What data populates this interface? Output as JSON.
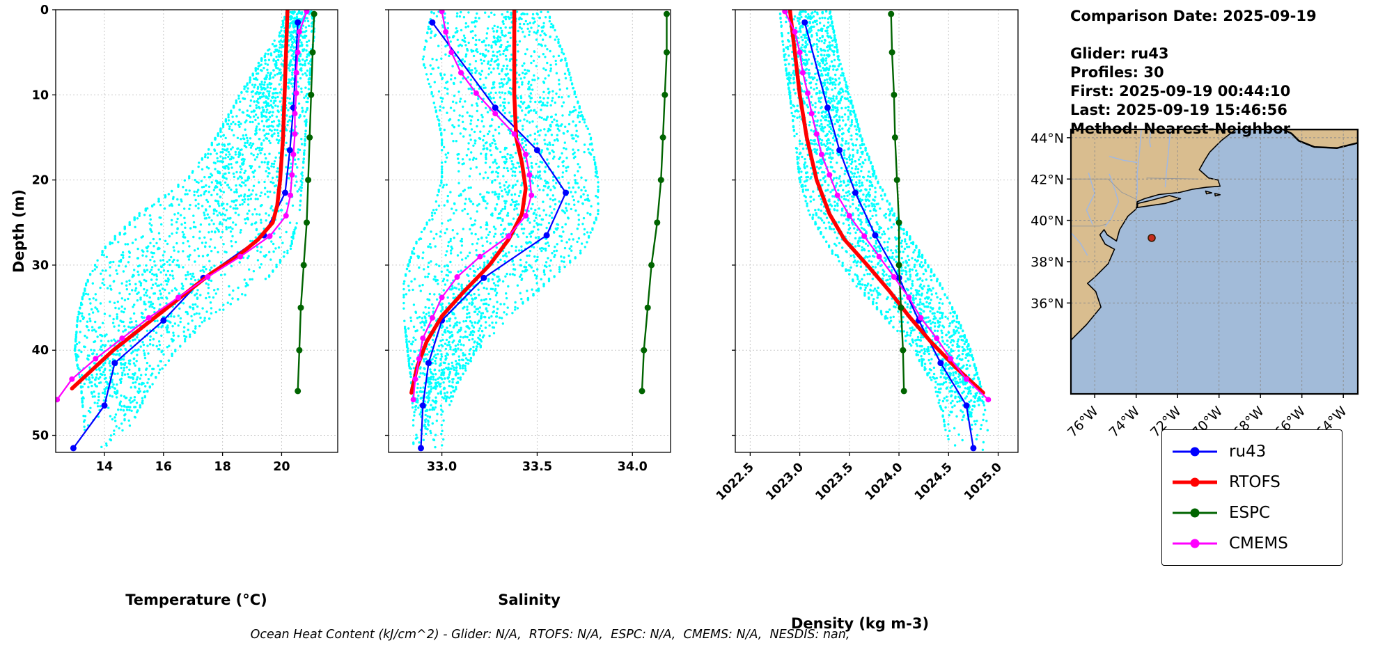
{
  "info": {
    "comparison_date": "Comparison Date: 2025-09-19",
    "glider": "Glider: ru43",
    "profiles": "Profiles: 30",
    "first": "First: 2025-09-19 00:44:10",
    "last": "Last: 2025-09-19 15:46:56",
    "method": "Method: Nearest-Neighbor"
  },
  "caption": "Ocean Heat Content (kJ/cm^2) - Glider: N/A,  RTOFS: N/A,  ESPC: N/A,  CMEMS: N/A,  NESDIS: nan,",
  "scatter_seed": 7,
  "colors": {
    "scatter": "#00FFFF",
    "ru43": "#0000FF",
    "RTOFS": "#FF0000",
    "ESPC": "#006400",
    "CMEMS": "#FF00FF",
    "land": "#D9BD8F",
    "ocean": "#A2BBD9",
    "rivers": "#9DB8E8",
    "grid": "#C9C9C9",
    "marker_fill": "#C62B1C",
    "marker_edge": "#3A1D06"
  },
  "legend": [
    {
      "label": "ru43",
      "color": "#0000FF",
      "lw": 3
    },
    {
      "label": "RTOFS",
      "color": "#FF0000",
      "lw": 5
    },
    {
      "label": "ESPC",
      "color": "#006400",
      "lw": 3
    },
    {
      "label": "CMEMS",
      "color": "#FF00FF",
      "lw": 3
    }
  ],
  "chart_data": [
    {
      "type": "scatter",
      "panel": "temperature",
      "xlabel": "Temperature (°C)",
      "ylabel": "Depth (m)",
      "xlim": [
        12.35,
        21.9
      ],
      "depth_lim": [
        0,
        52
      ],
      "xticks": [
        14,
        16,
        18,
        20
      ],
      "xtick_labels": [
        "14",
        "16",
        "18",
        "20"
      ],
      "yticks": [
        0,
        10,
        20,
        30,
        40,
        50
      ],
      "ytick_labels": [
        "0",
        "10",
        "20",
        "30",
        "40",
        "50"
      ],
      "rotate_xtick_labels": false,
      "show_ytick_labels": true,
      "scatter_envelope": {
        "depths": [
          0,
          3,
          6,
          10,
          15,
          20,
          24,
          28,
          32,
          36,
          40,
          44,
          48,
          52
        ],
        "min": [
          20.2,
          19.9,
          19.3,
          18.6,
          17.8,
          16.8,
          15.2,
          14.0,
          13.4,
          13.1,
          13.0,
          13.2,
          13.3,
          13.4
        ],
        "max": [
          21.1,
          21.1,
          21.0,
          20.9,
          20.8,
          20.7,
          20.6,
          20.3,
          19.4,
          17.6,
          16.4,
          15.6,
          15.0,
          14.4
        ]
      },
      "series": [
        {
          "name": "ru43",
          "lw": 2.2,
          "ms": 4.5,
          "marker": true,
          "depths": [
            1.5,
            11.5,
            16.5,
            21.5,
            26.5,
            31.5,
            36.5,
            41.5,
            46.5,
            51.5
          ],
          "values": [
            20.55,
            20.4,
            20.28,
            20.12,
            19.4,
            17.35,
            16.0,
            14.35,
            14.0,
            12.95
          ]
        },
        {
          "name": "RTOFS",
          "lw": 5.5,
          "ms": 0,
          "marker": false,
          "depths": [
            0,
            5,
            10,
            15,
            20,
            23,
            25,
            27,
            29,
            31,
            34,
            37,
            40,
            44.5
          ],
          "values": [
            20.2,
            20.15,
            20.1,
            20.05,
            19.95,
            19.85,
            19.7,
            19.2,
            18.5,
            17.6,
            16.5,
            15.4,
            14.3,
            12.9
          ]
        },
        {
          "name": "ESPC",
          "lw": 2.4,
          "ms": 4.5,
          "marker": true,
          "depths": [
            0.5,
            5,
            10,
            15,
            20,
            25,
            30,
            35,
            40,
            44.8
          ],
          "values": [
            21.1,
            21.05,
            21.0,
            20.95,
            20.9,
            20.85,
            20.75,
            20.65,
            20.6,
            20.55
          ]
        },
        {
          "name": "CMEMS",
          "lw": 2.2,
          "ms": 4,
          "marker": true,
          "depths": [
            0.2,
            2.6,
            5,
            7.4,
            9.8,
            12.2,
            14.6,
            17,
            19.4,
            21.8,
            24.2,
            26.6,
            29,
            31.4,
            33.8,
            36.2,
            38.6,
            41,
            43.4,
            45.8
          ],
          "values": [
            20.85,
            20.6,
            20.55,
            20.5,
            20.5,
            20.45,
            20.45,
            20.4,
            20.35,
            20.3,
            20.15,
            19.6,
            18.6,
            17.5,
            16.5,
            15.5,
            14.6,
            13.7,
            12.9,
            12.4
          ]
        }
      ]
    },
    {
      "type": "scatter",
      "panel": "salinity",
      "xlabel": "Salinity",
      "ylabel": "Depth (m)",
      "xlim": [
        32.72,
        34.2
      ],
      "depth_lim": [
        0,
        52
      ],
      "xticks": [
        33.0,
        33.5,
        34.0
      ],
      "xtick_labels": [
        "33.0",
        "33.5",
        "34.0"
      ],
      "yticks": [
        0,
        10,
        20,
        30,
        40,
        50
      ],
      "ytick_labels": [
        "0",
        "10",
        "20",
        "30",
        "40",
        "50"
      ],
      "rotate_xtick_labels": false,
      "show_ytick_labels": false,
      "scatter_envelope": {
        "depths": [
          0,
          3,
          6,
          10,
          15,
          20,
          24,
          28,
          32,
          36,
          40,
          44,
          48,
          52
        ],
        "min": [
          32.95,
          32.92,
          32.9,
          32.95,
          33.0,
          33.0,
          32.95,
          32.85,
          32.8,
          32.8,
          32.82,
          32.84,
          32.85,
          32.85
        ],
        "max": [
          33.55,
          33.6,
          33.65,
          33.7,
          33.78,
          33.82,
          33.82,
          33.75,
          33.55,
          33.35,
          33.18,
          33.08,
          33.02,
          33.0
        ]
      },
      "series": [
        {
          "name": "ru43",
          "lw": 2.2,
          "ms": 4.5,
          "marker": true,
          "depths": [
            1.5,
            11.5,
            16.5,
            21.5,
            26.5,
            31.5,
            36.5,
            41.5,
            46.5,
            51.5
          ],
          "values": [
            32.95,
            33.28,
            33.5,
            33.65,
            33.55,
            33.22,
            33.0,
            32.93,
            32.9,
            32.89
          ]
        },
        {
          "name": "RTOFS",
          "lw": 5.5,
          "ms": 0,
          "marker": false,
          "depths": [
            0,
            5,
            10,
            15,
            18,
            21,
            24,
            27,
            30,
            33,
            36,
            39,
            42,
            45
          ],
          "values": [
            33.38,
            33.38,
            33.38,
            33.39,
            33.42,
            33.44,
            33.42,
            33.35,
            33.25,
            33.12,
            33.0,
            32.92,
            32.87,
            32.84
          ]
        },
        {
          "name": "ESPC",
          "lw": 2.4,
          "ms": 4.5,
          "marker": true,
          "depths": [
            0.5,
            5,
            10,
            15,
            20,
            25,
            30,
            35,
            40,
            44.8
          ],
          "values": [
            34.18,
            34.18,
            34.17,
            34.16,
            34.15,
            34.13,
            34.1,
            34.08,
            34.06,
            34.05
          ]
        },
        {
          "name": "CMEMS",
          "lw": 2.2,
          "ms": 4,
          "marker": true,
          "depths": [
            0.2,
            2.6,
            5,
            7.4,
            9.8,
            12.2,
            14.6,
            17,
            19.4,
            21.8,
            24.2,
            26.6,
            29,
            31.4,
            33.8,
            36.2,
            38.6,
            41,
            43.4,
            45.8
          ],
          "values": [
            33.0,
            33.02,
            33.05,
            33.1,
            33.18,
            33.28,
            33.38,
            33.44,
            33.46,
            33.47,
            33.44,
            33.35,
            33.2,
            33.08,
            33.0,
            32.95,
            32.9,
            32.88,
            32.86,
            32.85
          ]
        }
      ]
    },
    {
      "type": "scatter",
      "panel": "density",
      "xlabel": "Density (kg m-3)",
      "ylabel": "Depth (m)",
      "xlim": [
        1022.35,
        1025.2
      ],
      "depth_lim": [
        0,
        52
      ],
      "xticks": [
        1022.5,
        1023.0,
        1023.5,
        1024.0,
        1024.5,
        1025.0
      ],
      "xtick_labels": [
        "1022.5",
        "1023.0",
        "1023.5",
        "1024.0",
        "1024.5",
        "1025.0"
      ],
      "yticks": [
        0,
        10,
        20,
        30,
        40,
        50
      ],
      "ytick_labels": [
        "0",
        "10",
        "20",
        "30",
        "40",
        "50"
      ],
      "rotate_xtick_labels": true,
      "show_ytick_labels": false,
      "scatter_envelope": {
        "depths": [
          0,
          3,
          6,
          10,
          15,
          20,
          24,
          28,
          32,
          36,
          40,
          44,
          48,
          52
        ],
        "min": [
          1022.8,
          1022.82,
          1022.85,
          1022.9,
          1022.95,
          1023.0,
          1023.1,
          1023.3,
          1023.55,
          1023.85,
          1024.15,
          1024.35,
          1024.45,
          1024.5
        ],
        "max": [
          1023.3,
          1023.35,
          1023.4,
          1023.5,
          1023.62,
          1023.78,
          1023.95,
          1024.18,
          1024.4,
          1024.58,
          1024.72,
          1024.82,
          1024.88,
          1024.92
        ]
      },
      "series": [
        {
          "name": "ru43",
          "lw": 2.2,
          "ms": 4.5,
          "marker": true,
          "depths": [
            1.5,
            11.5,
            16.5,
            21.5,
            26.5,
            31.5,
            36.5,
            41.5,
            46.5,
            51.5
          ],
          "values": [
            1023.05,
            1023.28,
            1023.4,
            1023.56,
            1023.76,
            1024.0,
            1024.2,
            1024.42,
            1024.68,
            1024.75
          ]
        },
        {
          "name": "RTOFS",
          "lw": 5.5,
          "ms": 0,
          "marker": false,
          "depths": [
            0,
            5,
            10,
            15,
            20,
            24,
            27,
            30,
            33,
            36,
            39,
            42,
            45
          ],
          "values": [
            1022.9,
            1022.95,
            1023.0,
            1023.07,
            1023.17,
            1023.3,
            1023.45,
            1023.68,
            1023.9,
            1024.1,
            1024.32,
            1024.57,
            1024.85
          ]
        },
        {
          "name": "ESPC",
          "lw": 2.4,
          "ms": 4.5,
          "marker": true,
          "depths": [
            0.5,
            5,
            10,
            15,
            20,
            25,
            30,
            35,
            40,
            44.8
          ],
          "values": [
            1023.92,
            1023.93,
            1023.95,
            1023.96,
            1023.98,
            1024.0,
            1024.0,
            1024.02,
            1024.04,
            1024.05
          ]
        },
        {
          "name": "CMEMS",
          "lw": 2.2,
          "ms": 4,
          "marker": true,
          "depths": [
            0.2,
            2.6,
            5,
            7.4,
            9.8,
            12.2,
            14.6,
            17,
            19.4,
            21.8,
            24.2,
            26.6,
            29,
            31.4,
            33.8,
            36.2,
            38.6,
            41,
            43.4,
            45.8
          ],
          "values": [
            1022.85,
            1022.95,
            1023.0,
            1023.03,
            1023.08,
            1023.12,
            1023.17,
            1023.22,
            1023.3,
            1023.38,
            1023.5,
            1023.65,
            1023.8,
            1023.95,
            1024.1,
            1024.22,
            1024.38,
            1024.52,
            1024.68,
            1024.9
          ]
        }
      ]
    }
  ],
  "map": {
    "extent": {
      "lon_west": 77.15,
      "lon_east": 63.3,
      "lat_north": 44.4,
      "lat_south": 31.6
    },
    "lat_ticks": [
      36,
      38,
      40,
      42,
      44
    ],
    "lat_tick_labels": [
      "36°N",
      "38°N",
      "40°N",
      "42°N",
      "44°N"
    ],
    "lon_ticks": [
      76,
      74,
      72,
      70,
      68,
      66,
      64
    ],
    "lon_tick_labels": [
      "76°W",
      "74°W",
      "72°W",
      "70°W",
      "68°W",
      "66°W",
      "64°W"
    ],
    "marker": {
      "lon": 73.25,
      "lat": 39.15
    },
    "land": [
      [
        [
          77.15,
          44.4
        ],
        [
          69.2,
          44.4
        ],
        [
          69.9,
          43.85
        ],
        [
          70.45,
          43.3
        ],
        [
          70.7,
          42.9
        ],
        [
          70.95,
          42.45
        ],
        [
          70.5,
          42.05
        ],
        [
          70.05,
          41.95
        ],
        [
          69.95,
          41.65
        ],
        [
          70.6,
          41.6
        ],
        [
          71.3,
          41.5
        ],
        [
          71.9,
          41.35
        ],
        [
          72.9,
          41.25
        ],
        [
          73.6,
          41.05
        ],
        [
          73.95,
          40.9
        ],
        [
          74.0,
          40.55
        ],
        [
          74.4,
          40.2
        ],
        [
          74.8,
          39.55
        ],
        [
          74.95,
          39.0
        ],
        [
          75.4,
          39.3
        ],
        [
          75.55,
          39.55
        ],
        [
          75.75,
          39.3
        ],
        [
          75.5,
          38.85
        ],
        [
          75.05,
          38.6
        ],
        [
          75.35,
          37.9
        ],
        [
          76.0,
          37.25
        ],
        [
          76.35,
          36.95
        ],
        [
          75.95,
          36.55
        ],
        [
          75.7,
          35.8
        ],
        [
          76.4,
          34.95
        ],
        [
          77.15,
          34.2
        ]
      ],
      [
        [
          73.95,
          40.62
        ],
        [
          72.6,
          40.82
        ],
        [
          71.86,
          41.05
        ],
        [
          72.4,
          41.2
        ],
        [
          73.35,
          40.95
        ],
        [
          73.92,
          40.82
        ]
      ],
      [
        [
          66.9,
          44.4
        ],
        [
          63.3,
          44.4
        ],
        [
          63.3,
          43.75
        ],
        [
          64.3,
          43.5
        ],
        [
          65.4,
          43.55
        ],
        [
          66.15,
          43.85
        ],
        [
          66.5,
          44.2
        ]
      ],
      [
        [
          70.65,
          41.42
        ],
        [
          70.35,
          41.33
        ],
        [
          70.6,
          41.28
        ]
      ],
      [
        [
          70.2,
          41.3
        ],
        [
          69.95,
          41.24
        ],
        [
          70.18,
          41.18
        ]
      ]
    ],
    "rivers": [
      [
        [
          73.75,
          44.4
        ],
        [
          73.85,
          43.2
        ],
        [
          73.95,
          42.3
        ],
        [
          73.95,
          41.4
        ],
        [
          74.0,
          40.9
        ]
      ],
      [
        [
          75.3,
          43.1
        ],
        [
          74.6,
          42.9
        ],
        [
          73.95,
          42.8
        ]
      ],
      [
        [
          75.3,
          42.25
        ],
        [
          75.0,
          41.4
        ],
        [
          74.85,
          40.9
        ],
        [
          75.2,
          40.1
        ],
        [
          75.5,
          39.7
        ]
      ],
      [
        [
          76.3,
          42.3
        ],
        [
          76.0,
          41.3
        ],
        [
          76.4,
          40.5
        ],
        [
          76.1,
          39.8
        ]
      ],
      [
        [
          72.35,
          44.4
        ],
        [
          72.45,
          43.2
        ],
        [
          72.55,
          42.2
        ],
        [
          72.6,
          41.6
        ]
      ],
      [
        [
          77.15,
          39.4
        ],
        [
          76.7,
          38.9
        ],
        [
          76.35,
          38.3
        ]
      ],
      [
        [
          73.3,
          44.4
        ],
        [
          73.35,
          43.8
        ],
        [
          73.3,
          43.55
        ]
      ]
    ],
    "borders": [
      [
        [
          77.15,
          42.0
        ],
        [
          75.35,
          42.0
        ]
      ],
      [
        [
          75.35,
          42.0
        ],
        [
          74.7,
          41.36
        ],
        [
          73.95,
          41.0
        ]
      ],
      [
        [
          73.5,
          42.05
        ],
        [
          71.8,
          42.02
        ],
        [
          71.0,
          42.0
        ]
      ],
      [
        [
          77.15,
          39.72
        ],
        [
          75.75,
          39.72
        ]
      ],
      [
        [
          75.75,
          39.72
        ],
        [
          75.45,
          39.82
        ]
      ]
    ]
  }
}
